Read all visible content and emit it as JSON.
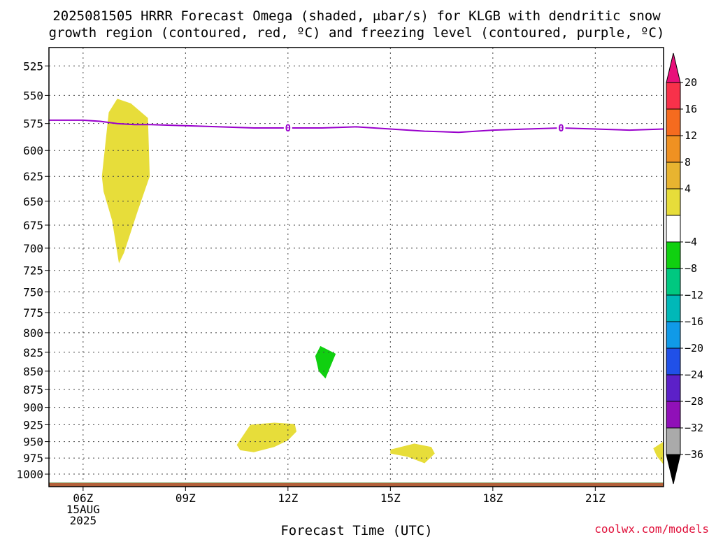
{
  "chart_data": {
    "type": "heatmap",
    "title_line1": "2025081505 HRRR Forecast Omega (shaded, μbar/s) for KLGB with dendritic snow",
    "title_line2": "growth region (contoured, red, ºC) and freezing level (contoured, purple, ºC)",
    "xlabel": "Forecast Time (UTC)",
    "credit": "coolwx.com/models",
    "x_ticks": [
      {
        "hour": 6,
        "lines": [
          "06Z",
          "15AUG",
          "2025"
        ]
      },
      {
        "hour": 9,
        "lines": [
          "09Z"
        ]
      },
      {
        "hour": 12,
        "lines": [
          "12Z"
        ]
      },
      {
        "hour": 15,
        "lines": [
          "15Z"
        ]
      },
      {
        "hour": 18,
        "lines": [
          "18Z"
        ]
      },
      {
        "hour": 21,
        "lines": [
          "21Z"
        ]
      }
    ],
    "x_range_hours": [
      5.0,
      23.0
    ],
    "y_ticks": [
      525,
      550,
      575,
      600,
      625,
      650,
      675,
      700,
      725,
      750,
      775,
      800,
      825,
      850,
      875,
      900,
      925,
      950,
      975,
      1000
    ],
    "y_range_mb": [
      510,
      1020
    ],
    "y_scale": "log-pressure (inverted)",
    "grid": true,
    "colorbar": {
      "labels": [
        "20",
        "16",
        "12",
        "8",
        "4",
        "−4",
        "−8",
        "−12",
        "−16",
        "−20",
        "−24",
        "−28",
        "−32",
        "−36"
      ],
      "colors": [
        "#f8314a",
        "#f56b1f",
        "#ef9122",
        "#e8b430",
        "#e7dd3a",
        "#ffffff",
        "#10d010",
        "#00c880",
        "#00b8b8",
        "#109ae8",
        "#2050e8",
        "#5c20c8",
        "#9010b8",
        "#aaaaaa"
      ],
      "top_triangle_color": "#e8107a",
      "bottom_triangle_color": "#000000"
    },
    "freezing_level": {
      "label": "0",
      "color": "#9900cc",
      "hours": [
        5.0,
        6.0,
        6.5,
        7.0,
        7.5,
        8.0,
        9.0,
        10.0,
        11.0,
        12.0,
        13.0,
        14.0,
        15.0,
        16.0,
        17.0,
        18.0,
        19.0,
        20.0,
        21.0,
        22.0,
        23.0
      ],
      "pressure_mb": [
        572,
        572,
        573,
        575,
        576,
        576,
        577,
        578,
        579,
        579,
        579,
        578,
        580,
        582,
        583,
        581,
        580,
        579,
        580,
        581,
        580
      ],
      "label_hours": [
        12.0,
        20.0
      ]
    },
    "omega_regions": [
      {
        "value_bin": "4 to 8",
        "color": "#e7dd3a",
        "points": [
          [
            6.55,
            625
          ],
          [
            6.75,
            565
          ],
          [
            7.0,
            553
          ],
          [
            7.4,
            557
          ],
          [
            7.9,
            570
          ],
          [
            7.95,
            625
          ],
          [
            7.6,
            660
          ],
          [
            7.2,
            705
          ],
          [
            7.05,
            717
          ],
          [
            6.85,
            670
          ],
          [
            6.6,
            640
          ]
        ]
      },
      {
        "value_bin": "4 to 8",
        "color": "#e7dd3a",
        "points": [
          [
            10.5,
            955
          ],
          [
            10.9,
            925
          ],
          [
            11.6,
            922
          ],
          [
            12.2,
            924
          ],
          [
            12.25,
            935
          ],
          [
            12.0,
            948
          ],
          [
            11.6,
            958
          ],
          [
            11.0,
            966
          ],
          [
            10.6,
            963
          ]
        ]
      },
      {
        "value_bin": "4 to 8",
        "color": "#e7dd3a",
        "points": [
          [
            15.0,
            962
          ],
          [
            15.7,
            953
          ],
          [
            16.2,
            958
          ],
          [
            16.3,
            968
          ],
          [
            16.0,
            983
          ],
          [
            15.5,
            973
          ],
          [
            15.0,
            968
          ]
        ]
      },
      {
        "value_bin": "4 to 8",
        "color": "#e7dd3a",
        "points": [
          [
            22.7,
            960
          ],
          [
            23.0,
            950
          ],
          [
            23.0,
            985
          ],
          [
            22.8,
            972
          ]
        ]
      },
      {
        "value_bin": "-8 to -4",
        "color": "#10d010",
        "points": [
          [
            12.8,
            830
          ],
          [
            12.95,
            817
          ],
          [
            13.4,
            827
          ],
          [
            13.1,
            860
          ],
          [
            12.9,
            850
          ]
        ]
      }
    ],
    "surface": {
      "color": "#b36039",
      "pressure_mb": 1015
    }
  }
}
